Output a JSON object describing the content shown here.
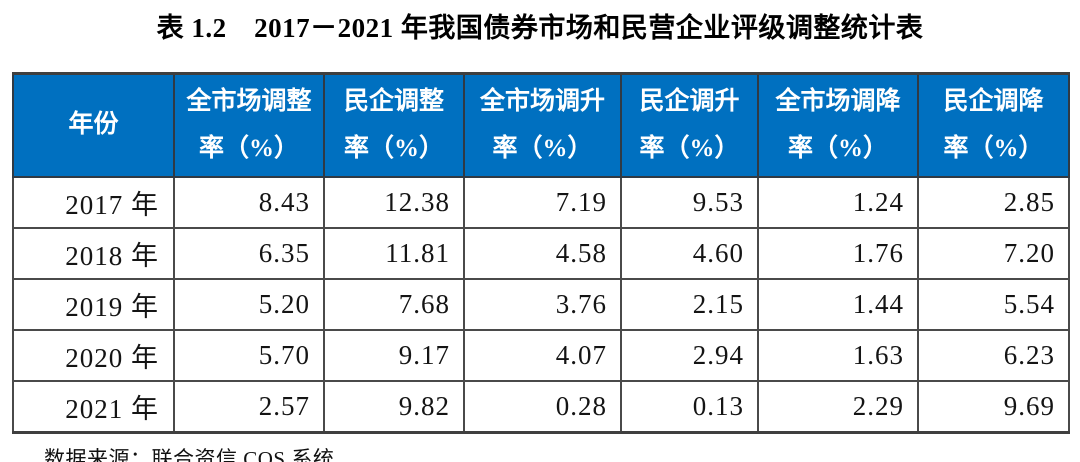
{
  "title": "表 1.2　2017－2021 年我国债券市场和民营企业评级调整统计表",
  "source_note": "数据来源：联合资信 COS 系统",
  "colors": {
    "header_bg": "#0070C0",
    "header_text": "#FFFFFF",
    "border_dark": "#3F3F3F",
    "border_inner": "#4A4A4A",
    "body_text": "#141414"
  },
  "table": {
    "header": {
      "year": "年份",
      "cols": [
        "全市场调整\n率（%）",
        "民企调整\n率（%）",
        "全市场调升\n率（%）",
        "民企调升\n率（%）",
        "全市场调降\n率（%）",
        "民企调降\n率（%）"
      ]
    },
    "rows": [
      {
        "year": "2017 年",
        "values": [
          "8.43",
          "12.38",
          "7.19",
          "9.53",
          "1.24",
          "2.85"
        ]
      },
      {
        "year": "2018 年",
        "values": [
          "6.35",
          "11.81",
          "4.58",
          "4.60",
          "1.76",
          "7.20"
        ]
      },
      {
        "year": "2019 年",
        "values": [
          "5.20",
          "7.68",
          "3.76",
          "2.15",
          "1.44",
          "5.54"
        ]
      },
      {
        "year": "2020 年",
        "values": [
          "5.70",
          "9.17",
          "4.07",
          "2.94",
          "1.63",
          "6.23"
        ]
      },
      {
        "year": "2021 年",
        "values": [
          "2.57",
          "9.82",
          "0.28",
          "0.13",
          "2.29",
          "9.69"
        ]
      }
    ]
  }
}
